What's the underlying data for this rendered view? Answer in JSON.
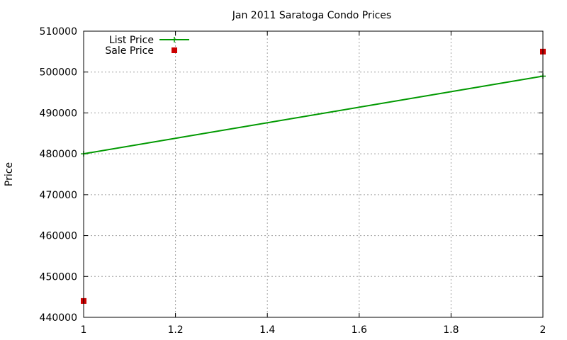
{
  "chart_data": {
    "type": "line",
    "title": "Jan 2011 Saratoga Condo Prices",
    "xlabel": "",
    "ylabel": "Price",
    "xlim": [
      1,
      2
    ],
    "ylim": [
      440000,
      510000
    ],
    "x_ticks": [
      "1",
      "1.2",
      "1.4",
      "1.6",
      "1.8",
      "2"
    ],
    "x_tick_values": [
      1,
      1.2,
      1.4,
      1.6,
      1.8,
      2
    ],
    "y_ticks": [
      "440000",
      "450000",
      "460000",
      "470000",
      "480000",
      "490000",
      "500000",
      "510000"
    ],
    "y_tick_values": [
      440000,
      450000,
      460000,
      470000,
      480000,
      490000,
      500000,
      510000
    ],
    "grid": true,
    "legend_position": "top-left",
    "series": [
      {
        "name": "List Price",
        "style": "line",
        "color": "#009900",
        "x": [
          1,
          2
        ],
        "y": [
          480000,
          499000
        ]
      },
      {
        "name": "Sale Price",
        "style": "points",
        "color": "#cc0000",
        "x": [
          1,
          2
        ],
        "y": [
          444000,
          505000
        ]
      }
    ]
  }
}
